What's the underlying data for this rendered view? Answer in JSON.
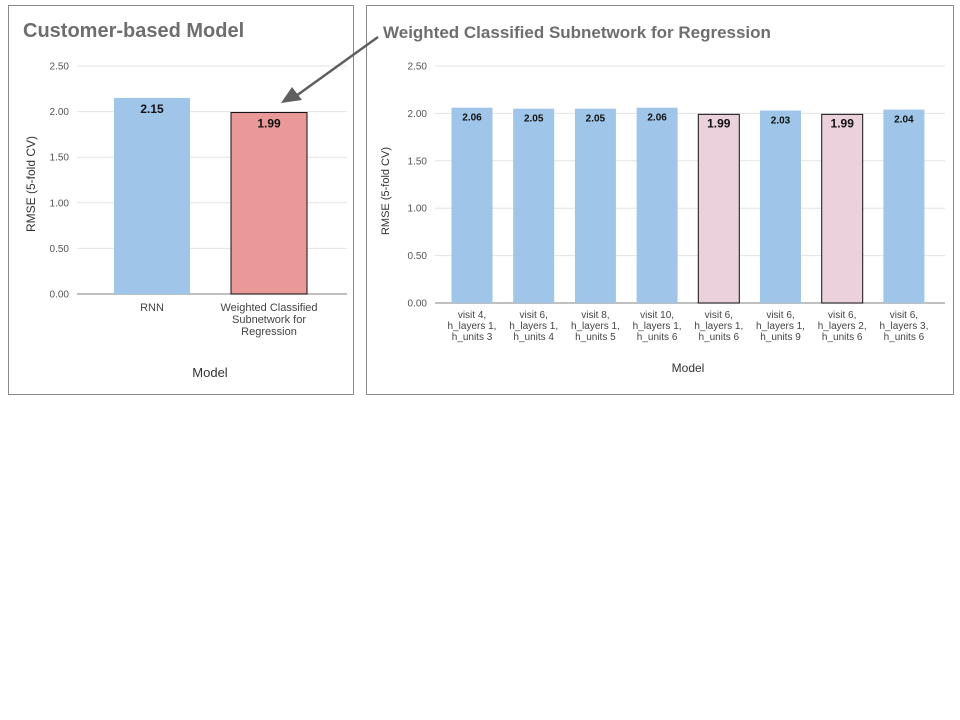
{
  "chart_data": [
    {
      "type": "bar",
      "title": "Customer-based Model",
      "xlabel": "Model",
      "ylabel": "RMSE (5-fold CV)",
      "ylim": [
        0,
        2.5
      ],
      "yticks": [
        "0.00",
        "0.50",
        "1.00",
        "1.50",
        "2.00",
        "2.50"
      ],
      "grid": true,
      "categories": [
        [
          "RNN"
        ],
        [
          "Weighted Classified",
          "Subnetwork for",
          "Regression"
        ]
      ],
      "values": [
        2.15,
        1.99
      ],
      "data_labels": [
        "2.15",
        "1.99"
      ],
      "bar_colors": [
        "#9fc5e8",
        "#ea9999"
      ],
      "highlighted": [
        false,
        true
      ]
    },
    {
      "type": "bar",
      "title": "Weighted Classified Subnetwork for Regression",
      "xlabel": "Model",
      "ylabel": "RMSE (5-fold CV)",
      "ylim": [
        0,
        2.5
      ],
      "yticks": [
        "0.00",
        "0.50",
        "1.00",
        "1.50",
        "2.00",
        "2.50"
      ],
      "grid": true,
      "categories": [
        [
          "visit 4,",
          "h_layers 1,",
          "h_units 3"
        ],
        [
          "visit 6,",
          "h_layers 1,",
          "h_units 4"
        ],
        [
          "visit 8,",
          "h_layers 1,",
          "h_units 5"
        ],
        [
          "visit 10,",
          "h_layers 1,",
          "h_units 6"
        ],
        [
          "visit 6,",
          "h_layers 1,",
          "h_units 6"
        ],
        [
          "visit 6,",
          "h_layers 1,",
          "h_units 9"
        ],
        [
          "visit 6,",
          "h_layers 2,",
          "h_units 6"
        ],
        [
          "visit 6,",
          "h_layers 3,",
          "h_units 6"
        ]
      ],
      "values": [
        2.06,
        2.05,
        2.05,
        2.06,
        1.99,
        2.03,
        1.99,
        2.04
      ],
      "data_labels": [
        "2.06",
        "2.05",
        "2.05",
        "2.06",
        "1.99",
        "2.03",
        "1.99",
        "2.04"
      ],
      "bar_colors": [
        "#9fc5e8",
        "#9fc5e8",
        "#9fc5e8",
        "#9fc5e8",
        "#ead1dc",
        "#9fc5e8",
        "#ead1dc",
        "#9fc5e8"
      ],
      "highlighted": [
        false,
        false,
        false,
        false,
        true,
        false,
        true,
        false
      ]
    }
  ],
  "annotation": {
    "arrow": "points from right chart title to highlighted bar in left chart"
  }
}
